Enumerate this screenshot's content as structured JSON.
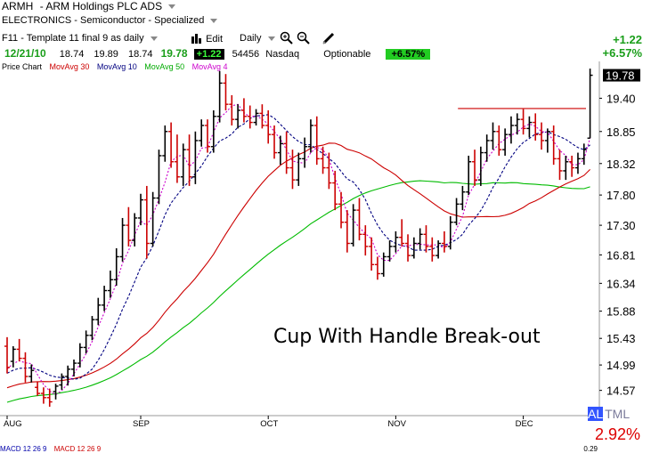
{
  "header": {
    "symbol": "ARMH",
    "company": "-  ARM Holdings PLC ADS",
    "sector": "ELECTRONICS - Semiconductor - Specialized",
    "template": "F11 - Template 11 final 9 as daily",
    "edit_label": "Edit",
    "period": "Daily",
    "date": "12/21/10",
    "open": "18.74",
    "high": "19.89",
    "low": "18.74",
    "close": "19.78",
    "change": "+1.22",
    "volume": "54456",
    "exchange": "Nasdaq",
    "optionable": "Optionable",
    "pct_change": "+6.57%",
    "right_change": "+1.22",
    "right_pct": "+6.57%"
  },
  "legend": {
    "price": "Price Chart",
    "ma30": "MovAvg 30",
    "ma10": "MovAvg 10",
    "ma50": "MovAvg 50",
    "ma4": "MovAvg 4"
  },
  "footer": {
    "al_text": "AL",
    "tml_text": "TML",
    "alpct": "2.92%",
    "macd1": "MACD 12 26 9",
    "macd2": "MACD 12 26 9",
    "macd_val": "0.29"
  },
  "colors": {
    "up_bar": "#000000",
    "down_bar": "#cc0000",
    "ma30": "#cc0000",
    "ma10": "#000080",
    "ma50": "#00bb00",
    "ma4": "#cc00cc",
    "resistance": "#cc0000",
    "positive": "#1a9e1a",
    "negative": "#dd0000"
  },
  "chart_data": {
    "type": "ohlc",
    "title": "Cup With Handle Break-out",
    "price_ticks": [
      "19.78",
      "19.40",
      "18.85",
      "18.32",
      "17.80",
      "17.30",
      "16.81",
      "16.34",
      "15.88",
      "15.43",
      "14.99",
      "14.57"
    ],
    "last_price": "19.78",
    "months": [
      {
        "label": "AUG",
        "index": 0
      },
      {
        "label": "SEP",
        "index": 22
      },
      {
        "label": "OCT",
        "index": 43
      },
      {
        "label": "NOV",
        "index": 64
      },
      {
        "label": "DEC",
        "index": 85
      }
    ],
    "resistance_level": 19.23,
    "resistance_from_index": 76,
    "ylim": [
      14.3,
      19.95
    ],
    "bars": [
      [
        15.3,
        15.45,
        14.85,
        14.95
      ],
      [
        15.05,
        15.3,
        14.95,
        15.25
      ],
      [
        15.25,
        15.42,
        15.05,
        15.1
      ],
      [
        15.1,
        15.2,
        14.7,
        14.8
      ],
      [
        14.8,
        15.0,
        14.7,
        14.9
      ],
      [
        14.62,
        14.72,
        14.48,
        14.52
      ],
      [
        14.52,
        14.62,
        14.35,
        14.45
      ],
      [
        14.45,
        14.6,
        14.3,
        14.38
      ],
      [
        14.55,
        14.68,
        14.42,
        14.64
      ],
      [
        14.66,
        14.85,
        14.58,
        14.8
      ],
      [
        14.8,
        14.98,
        14.65,
        14.92
      ],
      [
        14.92,
        15.08,
        14.8,
        15.02
      ],
      [
        15.02,
        15.35,
        14.95,
        15.28
      ],
      [
        15.28,
        15.56,
        15.18,
        15.48
      ],
      [
        15.48,
        15.8,
        15.4,
        15.74
      ],
      [
        15.74,
        16.1,
        15.65,
        15.98
      ],
      [
        15.98,
        16.3,
        15.88,
        16.22
      ],
      [
        16.22,
        16.55,
        16.1,
        16.4
      ],
      [
        16.4,
        16.92,
        16.3,
        16.78
      ],
      [
        16.78,
        17.42,
        16.7,
        17.3
      ],
      [
        17.3,
        17.6,
        16.95,
        17.05
      ],
      [
        17.05,
        17.5,
        16.95,
        17.42
      ],
      [
        17.42,
        17.82,
        17.3,
        17.72
      ],
      [
        17.72,
        17.95,
        16.75,
        17.0
      ],
      [
        17.0,
        17.85,
        16.95,
        17.75
      ],
      [
        17.75,
        18.55,
        17.65,
        18.45
      ],
      [
        18.45,
        18.95,
        18.35,
        18.85
      ],
      [
        18.85,
        19.0,
        18.25,
        18.35
      ],
      [
        18.35,
        18.8,
        18.0,
        18.1
      ],
      [
        18.1,
        18.65,
        17.95,
        18.55
      ],
      [
        18.55,
        18.8,
        17.95,
        18.1
      ],
      [
        18.1,
        18.85,
        17.98,
        18.7
      ],
      [
        18.7,
        19.05,
        18.6,
        18.95
      ],
      [
        18.95,
        19.05,
        18.5,
        18.6
      ],
      [
        18.6,
        19.2,
        18.5,
        19.1
      ],
      [
        19.1,
        19.85,
        19.0,
        19.65
      ],
      [
        19.65,
        19.8,
        19.2,
        19.3
      ],
      [
        19.3,
        19.45,
        18.95,
        19.05
      ],
      [
        19.05,
        19.3,
        18.9,
        19.2
      ],
      [
        19.2,
        19.4,
        19.0,
        19.1
      ],
      [
        19.1,
        19.28,
        18.9,
        19.0
      ],
      [
        19.0,
        19.22,
        18.95,
        19.15
      ],
      [
        19.15,
        19.3,
        18.9,
        18.95
      ],
      [
        18.95,
        19.2,
        18.65,
        18.8
      ],
      [
        18.8,
        18.95,
        18.4,
        18.5
      ],
      [
        18.5,
        18.78,
        18.3,
        18.65
      ],
      [
        18.65,
        18.85,
        18.15,
        18.25
      ],
      [
        18.25,
        18.55,
        17.9,
        18.05
      ],
      [
        18.05,
        18.5,
        17.95,
        18.4
      ],
      [
        18.4,
        18.75,
        18.25,
        18.6
      ],
      [
        18.6,
        19.05,
        18.5,
        18.95
      ],
      [
        18.95,
        19.1,
        18.3,
        18.4
      ],
      [
        18.4,
        18.6,
        18.15,
        18.25
      ],
      [
        18.25,
        18.5,
        17.9,
        18.0
      ],
      [
        18.0,
        18.2,
        17.55,
        17.65
      ],
      [
        17.65,
        17.85,
        17.25,
        17.35
      ],
      [
        17.35,
        17.55,
        16.85,
        17.0
      ],
      [
        17.0,
        17.65,
        16.95,
        17.55
      ],
      [
        17.55,
        17.75,
        17.05,
        17.15
      ],
      [
        17.15,
        17.3,
        16.8,
        16.95
      ],
      [
        16.95,
        17.1,
        16.55,
        16.65
      ],
      [
        16.65,
        16.78,
        16.4,
        16.5
      ],
      [
        16.5,
        16.85,
        16.45,
        16.78
      ],
      [
        16.78,
        17.05,
        16.7,
        16.95
      ],
      [
        16.95,
        17.2,
        16.85,
        17.1
      ],
      [
        17.1,
        17.4,
        16.95,
        17.0
      ],
      [
        17.0,
        17.15,
        16.7,
        16.8
      ],
      [
        16.8,
        17.1,
        16.75,
        17.0
      ],
      [
        17.0,
        17.25,
        16.9,
        17.15
      ],
      [
        17.15,
        17.3,
        16.85,
        16.95
      ],
      [
        16.95,
        17.1,
        16.7,
        16.8
      ],
      [
        16.8,
        17.05,
        16.75,
        17.0
      ],
      [
        17.0,
        17.2,
        16.85,
        16.95
      ],
      [
        16.95,
        17.45,
        16.9,
        17.35
      ],
      [
        17.35,
        17.75,
        17.3,
        17.65
      ],
      [
        17.65,
        17.95,
        17.55,
        17.85
      ],
      [
        17.85,
        18.45,
        17.8,
        18.35
      ],
      [
        18.35,
        18.55,
        17.95,
        18.05
      ],
      [
        18.05,
        18.6,
        17.95,
        18.5
      ],
      [
        18.5,
        18.8,
        18.35,
        18.7
      ],
      [
        18.7,
        19.0,
        18.55,
        18.85
      ],
      [
        18.85,
        18.95,
        18.45,
        18.55
      ],
      [
        18.55,
        18.9,
        18.45,
        18.8
      ],
      [
        18.8,
        19.1,
        18.65,
        18.95
      ],
      [
        18.95,
        19.15,
        18.8,
        19.05
      ],
      [
        19.05,
        19.22,
        18.8,
        18.9
      ],
      [
        18.9,
        19.1,
        18.75,
        19.0
      ],
      [
        19.0,
        19.15,
        18.7,
        18.8
      ],
      [
        18.8,
        19.0,
        18.55,
        18.7
      ],
      [
        18.7,
        18.9,
        18.5,
        18.85
      ],
      [
        18.85,
        18.95,
        18.3,
        18.4
      ],
      [
        18.4,
        18.55,
        18.05,
        18.2
      ],
      [
        18.2,
        18.45,
        18.05,
        18.35
      ],
      [
        18.35,
        18.45,
        18.1,
        18.25
      ],
      [
        18.25,
        18.5,
        18.15,
        18.4
      ],
      [
        18.4,
        18.65,
        18.3,
        18.55
      ],
      [
        18.74,
        19.89,
        18.74,
        19.78
      ]
    ]
  }
}
